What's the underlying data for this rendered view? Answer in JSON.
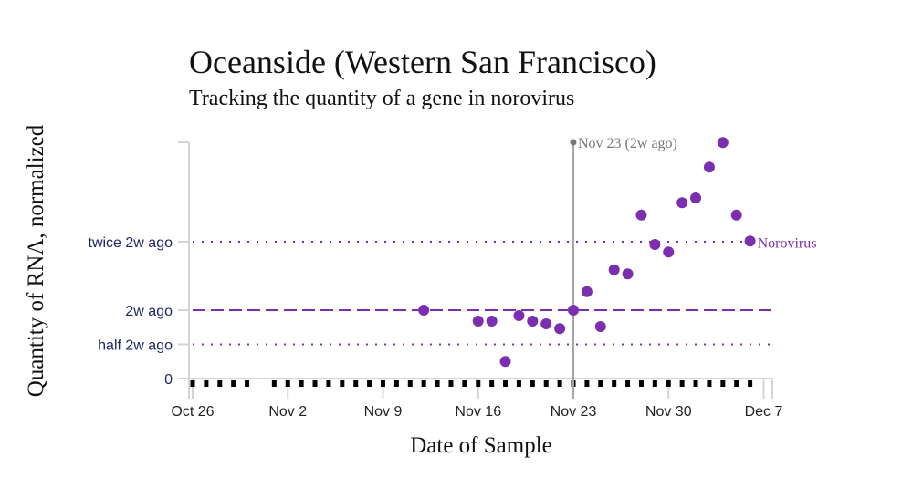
{
  "chart_data": {
    "type": "scatter",
    "title": "Oceanside (Western San Francisco)",
    "subtitle": "Tracking the quantity of a gene in norovirus",
    "xlabel": "Date of Sample",
    "ylabel": "Quantity of RNA, normalized",
    "x_start": "Oct 26",
    "x_tick_labels": [
      "Oct 26",
      "Nov 2",
      "Nov 9",
      "Nov 16",
      "Nov 23",
      "Nov 30",
      "Dec 7"
    ],
    "x_tick_days": [
      0,
      7,
      14,
      21,
      28,
      35,
      42
    ],
    "xlim_days": [
      0,
      43
    ],
    "ylim": [
      0,
      3.45
    ],
    "y_ticks": [
      {
        "value": 0,
        "label": "0"
      },
      {
        "value": 0.5,
        "label": "half 2w ago"
      },
      {
        "value": 1,
        "label": "2w ago"
      },
      {
        "value": 2,
        "label": "twice 2w ago"
      }
    ],
    "reference_lines": [
      {
        "value": 0.5,
        "style": "dotted"
      },
      {
        "value": 1,
        "style": "dashed"
      },
      {
        "value": 2,
        "style": "dotted"
      }
    ],
    "annotation": {
      "day": 28,
      "label": "Nov 23 (2w ago)"
    },
    "series": [
      {
        "name": "Norovirus",
        "color": "#7b2fb0",
        "points": [
          {
            "date": "Nov 12",
            "day": 17,
            "y": 1.0
          },
          {
            "date": "Nov 16",
            "day": 21,
            "y": 0.84
          },
          {
            "date": "Nov 17",
            "day": 22,
            "y": 0.84
          },
          {
            "date": "Nov 18",
            "day": 23,
            "y": 0.25
          },
          {
            "date": "Nov 19",
            "day": 24,
            "y": 0.92
          },
          {
            "date": "Nov 20",
            "day": 25,
            "y": 0.84
          },
          {
            "date": "Nov 21",
            "day": 26,
            "y": 0.8
          },
          {
            "date": "Nov 22",
            "day": 27,
            "y": 0.73
          },
          {
            "date": "Nov 23",
            "day": 28,
            "y": 1.0
          },
          {
            "date": "Nov 24",
            "day": 29,
            "y": 1.27
          },
          {
            "date": "Nov 25",
            "day": 30,
            "y": 0.76
          },
          {
            "date": "Nov 26",
            "day": 31,
            "y": 1.59
          },
          {
            "date": "Nov 27",
            "day": 32,
            "y": 1.53
          },
          {
            "date": "Nov 28",
            "day": 33,
            "y": 2.39
          },
          {
            "date": "Nov 29",
            "day": 34,
            "y": 1.96
          },
          {
            "date": "Nov 30",
            "day": 35,
            "y": 1.85
          },
          {
            "date": "Dec 1",
            "day": 36,
            "y": 2.57
          },
          {
            "date": "Dec 2",
            "day": 37,
            "y": 2.64
          },
          {
            "date": "Dec 3",
            "day": 38,
            "y": 3.09
          },
          {
            "date": "Dec 4",
            "day": 39,
            "y": 3.45
          },
          {
            "date": "Dec 5",
            "day": 40,
            "y": 2.39
          },
          {
            "date": "Dec 6",
            "day": 41,
            "y": 2.01
          }
        ]
      }
    ],
    "sample_days": [
      0,
      1,
      2,
      3,
      4,
      6,
      7,
      8,
      9,
      10,
      11,
      12,
      13,
      14,
      15,
      16,
      17,
      18,
      19,
      20,
      21,
      22,
      23,
      24,
      25,
      26,
      27,
      28,
      29,
      30,
      31,
      32,
      33,
      34,
      35,
      36,
      37,
      38,
      39,
      40,
      41
    ],
    "grid": false,
    "legend": "inline-right"
  }
}
